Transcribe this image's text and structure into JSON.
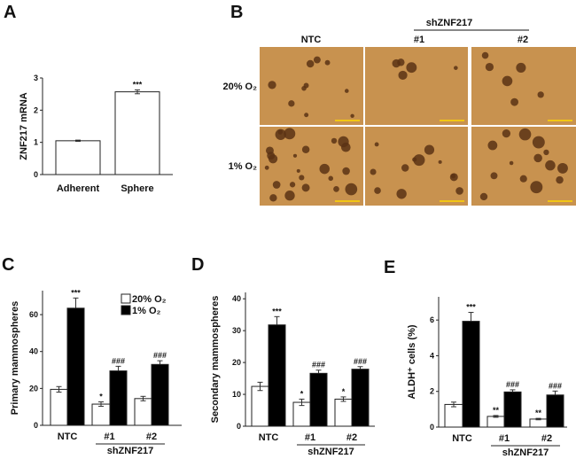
{
  "panel_labels": [
    "A",
    "B",
    "C",
    "D",
    "E"
  ],
  "colors": {
    "white_bar": "#ffffff",
    "black_bar": "#000000",
    "micrograph": "#c8924f",
    "sphere": "#5a3214",
    "scale_bar": "#ffd800"
  },
  "micrographs": {
    "group_label": "shZNF217",
    "columns": [
      "NTC",
      "#1",
      "#2"
    ],
    "rows": [
      "20% O₂",
      "1% O₂"
    ]
  },
  "chart_data": [
    {
      "id": "A",
      "type": "bar",
      "title": "",
      "xlabel": "",
      "ylabel": "ZNF217 mRNA",
      "ylim": [
        0,
        3
      ],
      "yticks": [
        "0",
        "1",
        "2",
        "3"
      ],
      "categories": [
        "Adherent",
        "Sphere"
      ],
      "series": [
        {
          "name": "",
          "values": [
            1.05,
            2.57
          ],
          "errors": [
            0.02,
            0.06
          ],
          "annotations": [
            "",
            "***"
          ]
        }
      ]
    },
    {
      "id": "C",
      "type": "bar",
      "ylabel": "Primary mammospheres",
      "ylim": [
        0,
        73
      ],
      "yticks": [
        "0",
        "20",
        "40",
        "60"
      ],
      "categories": [
        "NTC",
        "#1",
        "#2"
      ],
      "group_label": "shZNF217",
      "legend": {
        "position": "top-right",
        "entries": [
          "20% O₂",
          "1% O₂"
        ]
      },
      "series": [
        {
          "name": "20% O₂",
          "values": [
            19.5,
            11.5,
            14.5
          ],
          "errors": [
            1.5,
            1.2,
            1.2
          ],
          "annotations": [
            "",
            "*",
            ""
          ]
        },
        {
          "name": "1% O₂",
          "values": [
            63.5,
            29.5,
            33
          ],
          "errors": [
            5.5,
            2.5,
            2
          ],
          "annotations": [
            "***",
            "###",
            "###"
          ]
        }
      ]
    },
    {
      "id": "D",
      "type": "bar",
      "ylabel": "Secondary mammospheres",
      "ylim": [
        0,
        42
      ],
      "yticks": [
        "0",
        "10",
        "20",
        "30",
        "40"
      ],
      "categories": [
        "NTC",
        "#1",
        "#2"
      ],
      "group_label": "shZNF217",
      "series": [
        {
          "name": "20% O₂",
          "values": [
            12.5,
            7.5,
            8.5
          ],
          "errors": [
            1.3,
            1,
            0.7
          ],
          "annotations": [
            "",
            "*",
            "*"
          ]
        },
        {
          "name": "1% O₂",
          "values": [
            31.8,
            16.6,
            17.9
          ],
          "errors": [
            2.6,
            1,
            0.8
          ],
          "annotations": [
            "***",
            "###",
            "###"
          ]
        }
      ]
    },
    {
      "id": "E",
      "type": "bar",
      "ylabel": "ALDH⁺ cells (%)",
      "ylim": [
        0,
        7.3
      ],
      "yticks": [
        "0",
        "2",
        "4",
        "6"
      ],
      "categories": [
        "NTC",
        "#1",
        "#2"
      ],
      "group_label": "shZNF217",
      "series": [
        {
          "name": "20% O₂",
          "values": [
            1.27,
            0.6,
            0.45
          ],
          "errors": [
            0.13,
            0.05,
            0.04
          ],
          "annotations": [
            "",
            "**",
            "**"
          ]
        },
        {
          "name": "1% O₂",
          "values": [
            5.93,
            1.97,
            1.8
          ],
          "errors": [
            0.5,
            0.12,
            0.22
          ],
          "annotations": [
            "***",
            "###",
            "###"
          ]
        }
      ]
    }
  ]
}
